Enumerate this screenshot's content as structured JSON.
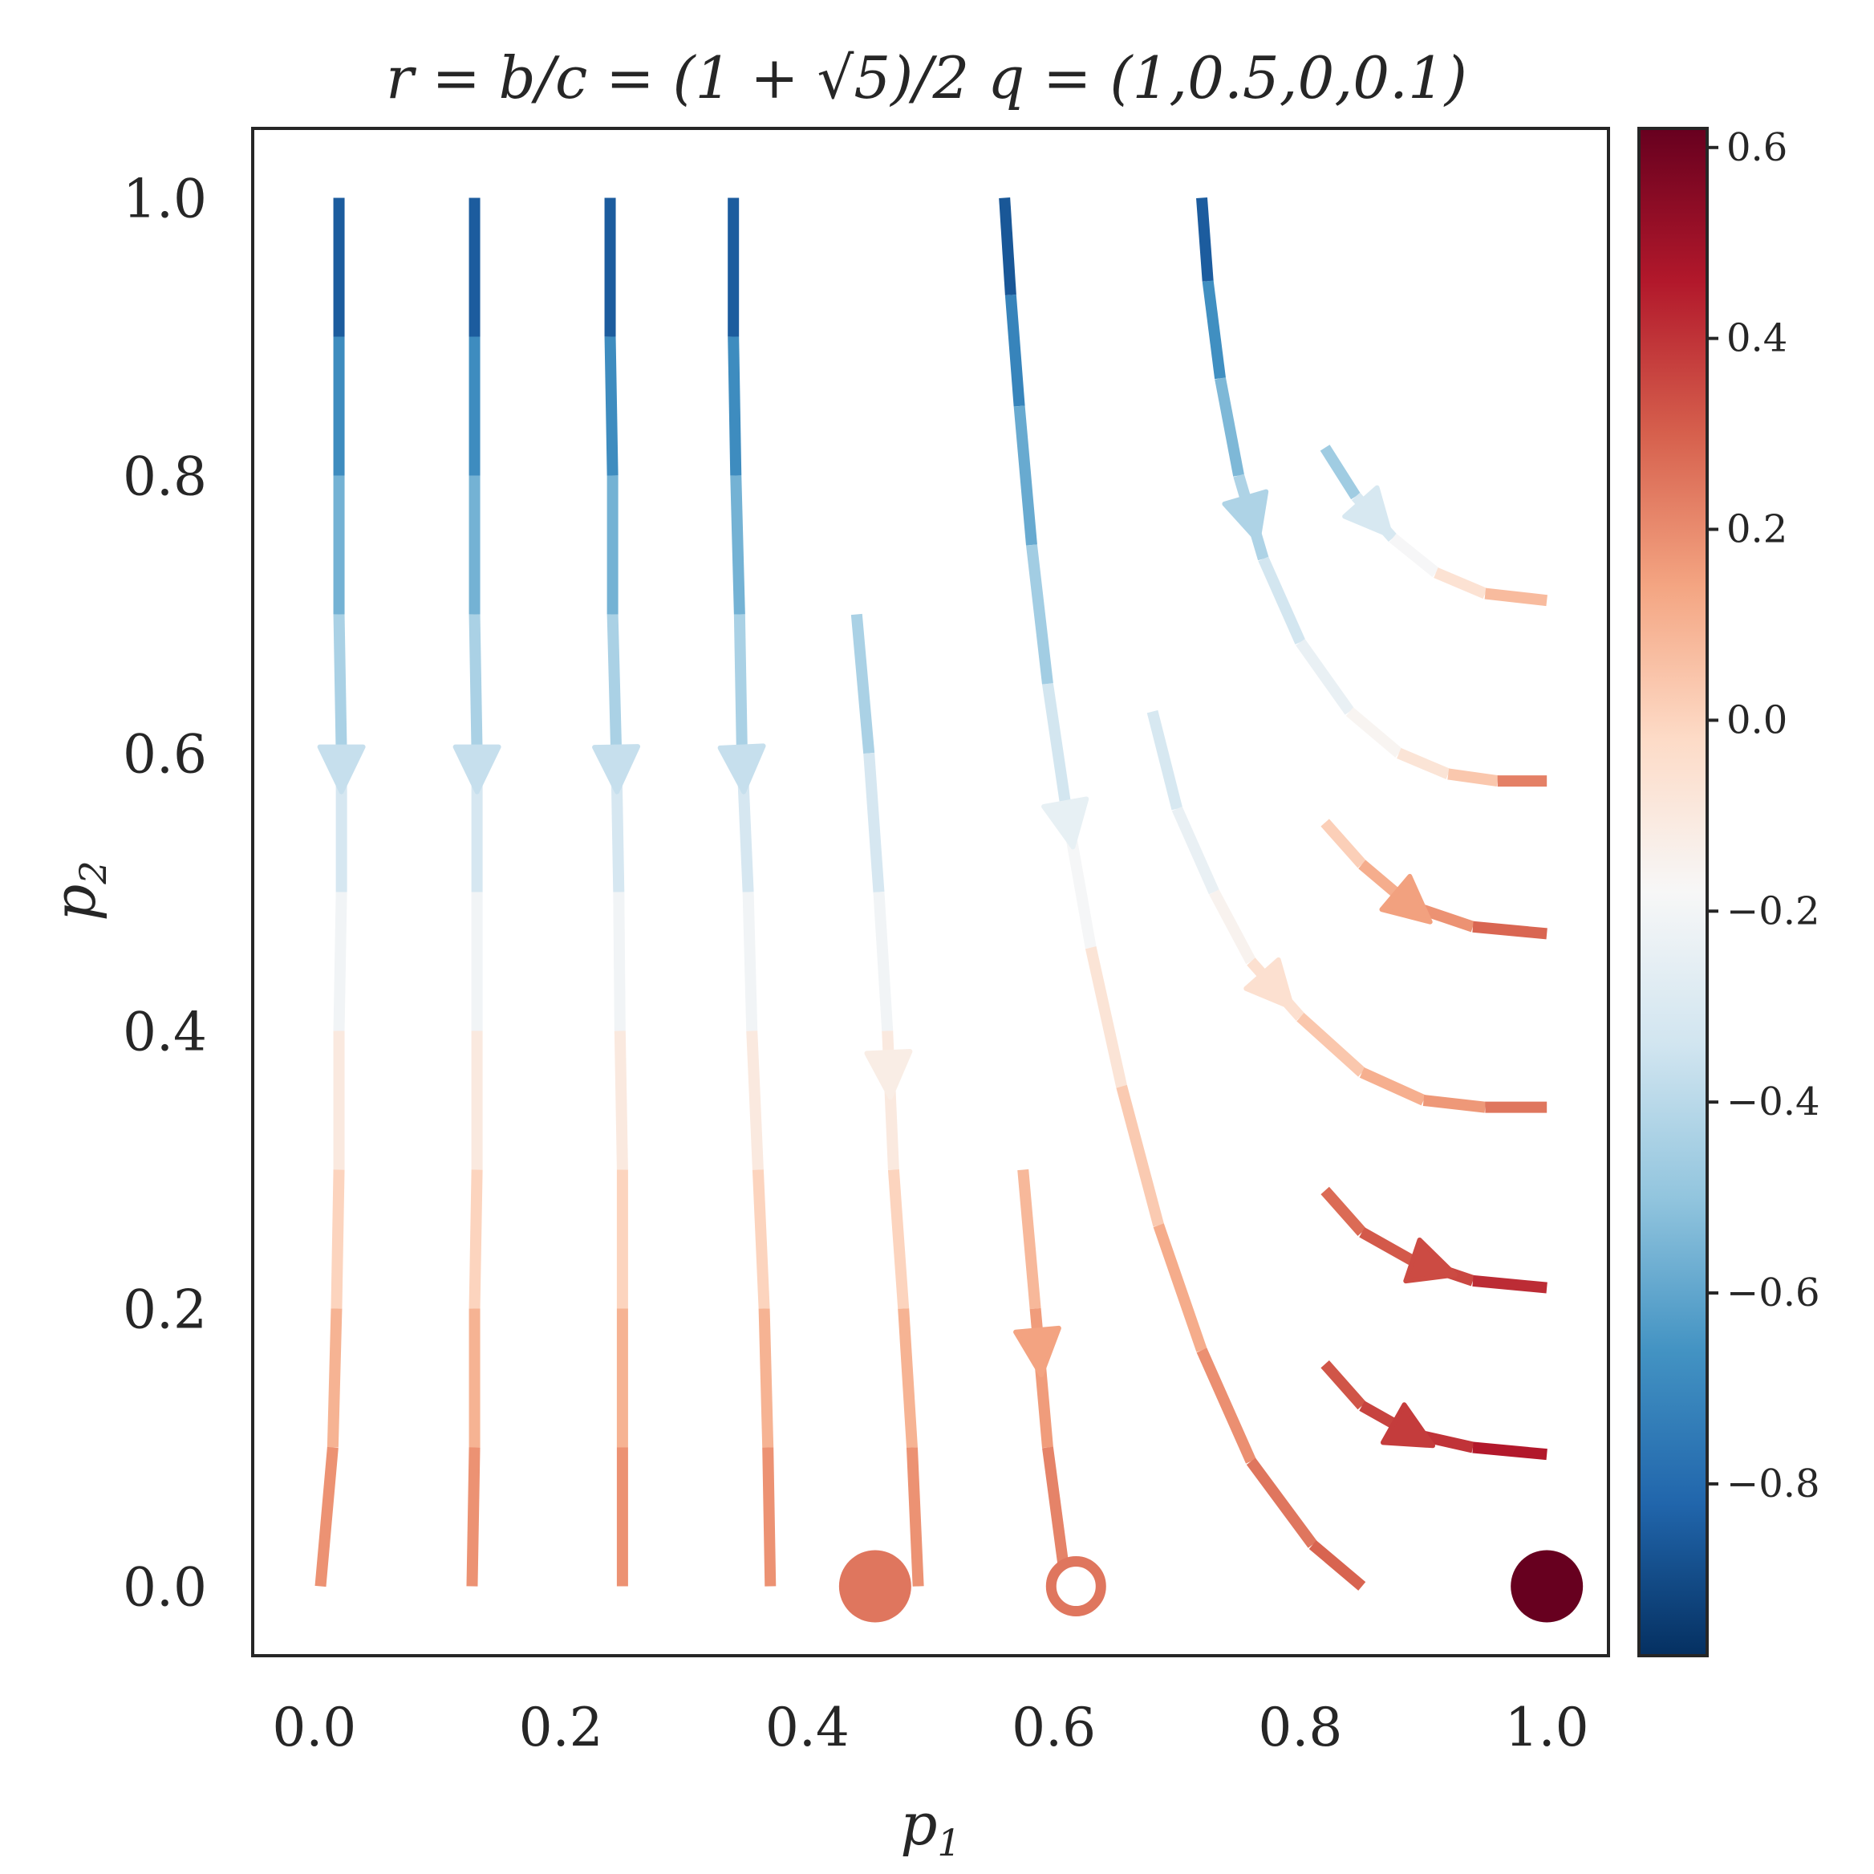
{
  "chart_data": {
    "type": "streamplot",
    "title": "r = b/c = (1 + √5)/2 q = (1,0.5,0,0.1)",
    "xlabel": "p",
    "xlabel_sub": "1",
    "ylabel": "p",
    "ylabel_sub": "2",
    "xlim": [
      -0.05,
      1.05
    ],
    "ylim": [
      -0.05,
      1.05
    ],
    "xticks": [
      "0.0",
      "0.2",
      "0.4",
      "0.6",
      "0.8",
      "1.0"
    ],
    "yticks": [
      "0.0",
      "0.2",
      "0.4",
      "0.6",
      "0.8",
      "1.0"
    ],
    "grid": false,
    "colormap": "RdBu_r",
    "colorbar": {
      "range": [
        -0.98,
        0.62
      ],
      "tick_values": [
        0.6,
        0.4,
        0.2,
        0.0,
        -0.2,
        -0.4,
        -0.6,
        -0.8
      ],
      "tick_labels": [
        "0.6",
        "0.4",
        "0.2",
        "0.0",
        "−0.2",
        "−0.4",
        "−0.6",
        "−0.8"
      ]
    },
    "streamlines": [
      {
        "points": [
          [
            0.02,
            1.0
          ],
          [
            0.02,
            0.9
          ],
          [
            0.02,
            0.8
          ],
          [
            0.02,
            0.7
          ],
          [
            0.022,
            0.6
          ],
          [
            0.022,
            0.5
          ],
          [
            0.02,
            0.4
          ],
          [
            0.02,
            0.3
          ],
          [
            0.018,
            0.2
          ],
          [
            0.015,
            0.1
          ],
          [
            0.005,
            0.0
          ]
        ],
        "values": [
          -0.95,
          -0.75,
          -0.62,
          -0.5,
          -0.38,
          -0.26,
          -0.15,
          -0.05,
          0.05,
          0.15,
          0.22
        ],
        "arrow_at": 0.59
      },
      {
        "points": [
          [
            0.13,
            1.0
          ],
          [
            0.13,
            0.9
          ],
          [
            0.13,
            0.8
          ],
          [
            0.13,
            0.7
          ],
          [
            0.132,
            0.6
          ],
          [
            0.132,
            0.5
          ],
          [
            0.132,
            0.4
          ],
          [
            0.132,
            0.3
          ],
          [
            0.13,
            0.2
          ],
          [
            0.13,
            0.1
          ],
          [
            0.128,
            0.0
          ]
        ],
        "values": [
          -0.95,
          -0.75,
          -0.62,
          -0.5,
          -0.38,
          -0.26,
          -0.15,
          -0.05,
          0.05,
          0.15,
          0.22
        ],
        "arrow_at": 0.59
      },
      {
        "points": [
          [
            0.24,
            1.0
          ],
          [
            0.24,
            0.9
          ],
          [
            0.242,
            0.8
          ],
          [
            0.242,
            0.7
          ],
          [
            0.245,
            0.6
          ],
          [
            0.247,
            0.5
          ],
          [
            0.248,
            0.4
          ],
          [
            0.25,
            0.3
          ],
          [
            0.25,
            0.2
          ],
          [
            0.25,
            0.1
          ],
          [
            0.25,
            0.0
          ]
        ],
        "values": [
          -0.95,
          -0.75,
          -0.62,
          -0.5,
          -0.38,
          -0.26,
          -0.15,
          -0.05,
          0.05,
          0.15,
          0.22
        ],
        "arrow_at": 0.59
      },
      {
        "points": [
          [
            0.34,
            1.0
          ],
          [
            0.34,
            0.9
          ],
          [
            0.342,
            0.8
          ],
          [
            0.345,
            0.7
          ],
          [
            0.347,
            0.6
          ],
          [
            0.352,
            0.5
          ],
          [
            0.355,
            0.4
          ],
          [
            0.36,
            0.3
          ],
          [
            0.365,
            0.2
          ],
          [
            0.368,
            0.1
          ],
          [
            0.37,
            0.0
          ]
        ],
        "values": [
          -0.95,
          -0.75,
          -0.62,
          -0.5,
          -0.38,
          -0.26,
          -0.15,
          -0.05,
          0.05,
          0.15,
          0.22
        ],
        "arrow_at": 0.59
      },
      {
        "points": [
          [
            0.44,
            0.7
          ],
          [
            0.45,
            0.6
          ],
          [
            0.458,
            0.5
          ],
          [
            0.465,
            0.4
          ],
          [
            0.47,
            0.3
          ],
          [
            0.478,
            0.2
          ],
          [
            0.485,
            0.1
          ],
          [
            0.49,
            0.0
          ]
        ],
        "values": [
          -0.5,
          -0.38,
          -0.26,
          -0.15,
          -0.05,
          0.05,
          0.15,
          0.22
        ],
        "arrow_at": 0.37
      },
      {
        "points": [
          [
            0.56,
            1.0
          ],
          [
            0.565,
            0.93
          ],
          [
            0.572,
            0.85
          ],
          [
            0.582,
            0.75
          ],
          [
            0.595,
            0.65
          ],
          [
            0.61,
            0.56
          ],
          [
            0.63,
            0.46
          ],
          [
            0.655,
            0.36
          ],
          [
            0.685,
            0.26
          ],
          [
            0.72,
            0.17
          ],
          [
            0.76,
            0.09
          ],
          [
            0.81,
            0.03
          ],
          [
            0.85,
            -0.0
          ]
        ],
        "values": [
          -0.95,
          -0.78,
          -0.65,
          -0.52,
          -0.4,
          -0.26,
          -0.12,
          -0.02,
          0.08,
          0.16,
          0.22,
          0.28,
          0.3
        ],
        "arrow_at": 0.55
      },
      {
        "points": [
          [
            0.72,
            1.0
          ],
          [
            0.725,
            0.94
          ],
          [
            0.735,
            0.87
          ],
          [
            0.75,
            0.8
          ],
          [
            0.77,
            0.74
          ],
          [
            0.8,
            0.68
          ],
          [
            0.84,
            0.63
          ],
          [
            0.88,
            0.6
          ],
          [
            0.92,
            0.585
          ],
          [
            0.96,
            0.58
          ],
          [
            1.0,
            0.58
          ]
        ],
        "values": [
          -0.95,
          -0.75,
          -0.6,
          -0.48,
          -0.38,
          -0.28,
          -0.2,
          -0.12,
          -0.02,
          0.1,
          0.35
        ],
        "arrow_at": 0.77
      },
      {
        "points": [
          [
            0.82,
            0.82
          ],
          [
            0.845,
            0.785
          ],
          [
            0.875,
            0.755
          ],
          [
            0.91,
            0.73
          ],
          [
            0.95,
            0.715
          ],
          [
            1.0,
            0.71
          ]
        ],
        "values": [
          -0.55,
          -0.38,
          -0.25,
          -0.12,
          0.0,
          0.15
        ],
        "arrow_at": 0.77
      },
      {
        "points": [
          [
            0.68,
            0.63
          ],
          [
            0.7,
            0.56
          ],
          [
            0.73,
            0.5
          ],
          [
            0.76,
            0.45
          ],
          [
            0.8,
            0.41
          ],
          [
            0.85,
            0.37
          ],
          [
            0.9,
            0.35
          ],
          [
            0.95,
            0.345
          ],
          [
            1.0,
            0.345
          ]
        ],
        "values": [
          -0.35,
          -0.28,
          -0.2,
          -0.1,
          0.0,
          0.08,
          0.14,
          0.2,
          0.3
        ],
        "arrow_at": 0.43
      },
      {
        "points": [
          [
            0.82,
            0.55
          ],
          [
            0.85,
            0.52
          ],
          [
            0.89,
            0.49
          ],
          [
            0.94,
            0.475
          ],
          [
            1.0,
            0.47
          ]
        ],
        "values": [
          -0.05,
          0.08,
          0.15,
          0.22,
          0.35
        ],
        "arrow_at": 0.49
      },
      {
        "points": [
          [
            0.82,
            0.285
          ],
          [
            0.85,
            0.255
          ],
          [
            0.89,
            0.235
          ],
          [
            0.94,
            0.22
          ],
          [
            1.0,
            0.215
          ]
        ],
        "values": [
          0.25,
          0.3,
          0.33,
          0.38,
          0.45
        ],
        "arrow_at": 0.23
      },
      {
        "points": [
          [
            0.82,
            0.16
          ],
          [
            0.85,
            0.13
          ],
          [
            0.89,
            0.11
          ],
          [
            0.94,
            0.1
          ],
          [
            1.0,
            0.095
          ]
        ],
        "values": [
          0.3,
          0.35,
          0.38,
          0.42,
          0.5
        ],
        "arrow_at": 0.11
      },
      {
        "points": [
          [
            0.575,
            0.3
          ],
          [
            0.585,
            0.2
          ],
          [
            0.595,
            0.1
          ],
          [
            0.61,
            0.0
          ]
        ],
        "values": [
          0.05,
          0.12,
          0.2,
          0.24
        ],
        "arrow_at": 0.17
      }
    ],
    "fixed_points": [
      {
        "x": 0.455,
        "y": 0.0,
        "style": "filled",
        "value": 0.25
      },
      {
        "x": 0.618,
        "y": 0.0,
        "style": "open",
        "value": 0.25
      },
      {
        "x": 1.0,
        "y": 0.0,
        "style": "filled",
        "value": 0.62
      }
    ]
  }
}
